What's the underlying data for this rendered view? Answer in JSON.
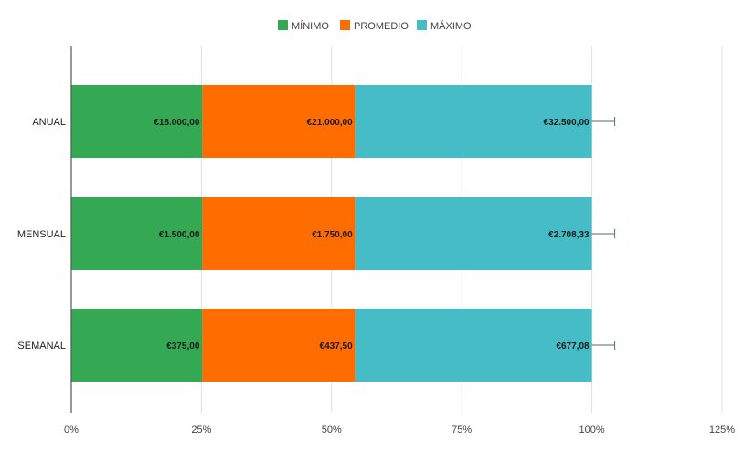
{
  "chart_data": {
    "type": "bar",
    "orientation": "horizontal",
    "stacked": "percent",
    "categories": [
      "ANUAL",
      "MENSUAL",
      "SEMANAL"
    ],
    "series": [
      {
        "name": "MÍNIMO",
        "color": "#34a853",
        "values": [
          18000,
          1500,
          375
        ],
        "labels": [
          "€18.000,00",
          "€1.500,00",
          "€375,00"
        ]
      },
      {
        "name": "PROMEDIO",
        "color": "#ff6d01",
        "values": [
          21000,
          1750,
          437.5
        ],
        "labels": [
          "€21.000,00",
          "€1.750,00",
          "€437,50"
        ]
      },
      {
        "name": "MÁXIMO",
        "color": "#46bdc6",
        "values": [
          32500,
          2708.33,
          677.08
        ],
        "labels": [
          "€32.500,00",
          "€2.708,33",
          "€677,08"
        ]
      }
    ],
    "x_ticks": [
      "0%",
      "25%",
      "50%",
      "75%",
      "100%",
      "125%"
    ],
    "xlim": [
      0,
      125
    ],
    "grid": true,
    "legend_position": "top",
    "error_bars": true
  }
}
